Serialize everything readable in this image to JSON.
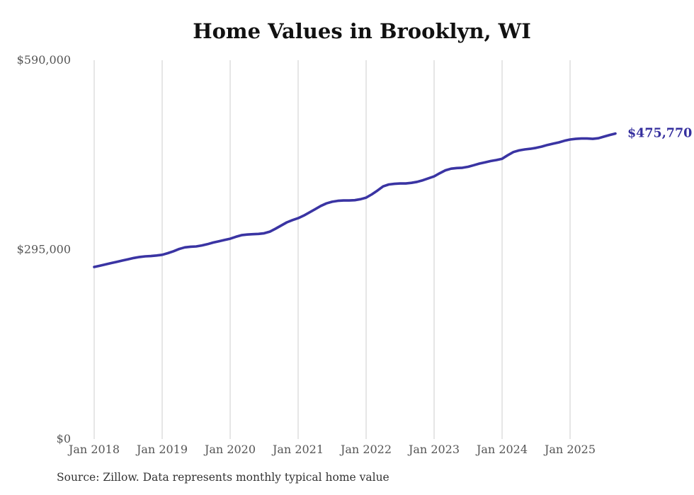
{
  "page": {
    "background": "#ffffff"
  },
  "chart_data": {
    "type": "line",
    "title": "Home Values in Brooklyn, WI",
    "source": "Source: Zillow. Data represents monthly typical home value",
    "series_name": "Typical home value",
    "x_start": "Jan 2018",
    "x_end": "Sep 2025",
    "frequency": "monthly",
    "values": [
      268000,
      270000,
      272000,
      274000,
      276000,
      278000,
      280000,
      282000,
      283500,
      284500,
      285000,
      285800,
      287000,
      289500,
      292500,
      296000,
      298500,
      299500,
      300000,
      301500,
      303500,
      306000,
      308000,
      310000,
      312000,
      315000,
      317500,
      318500,
      319000,
      319500,
      320500,
      323000,
      327500,
      332500,
      337500,
      341000,
      344000,
      348000,
      353000,
      358000,
      363000,
      367000,
      369500,
      371000,
      371500,
      371500,
      372000,
      373500,
      376000,
      381000,
      387000,
      393500,
      396500,
      397500,
      398000,
      398000,
      399000,
      400500,
      403000,
      406000,
      409000,
      414000,
      418500,
      421000,
      422000,
      422500,
      424000,
      426500,
      429000,
      431000,
      433000,
      434500,
      436500,
      442000,
      447000,
      449500,
      451000,
      452000,
      453500,
      455500,
      458000,
      460000,
      462000,
      464500,
      466500,
      467500,
      468000,
      468000,
      467500,
      468500,
      471000,
      473500,
      475770
    ],
    "x_tick_labels": [
      "Jan 2018",
      "Jan 2019",
      "Jan 2020",
      "Jan 2021",
      "Jan 2022",
      "Jan 2023",
      "Jan 2024",
      "Jan 2025"
    ],
    "y_ticks": [
      {
        "value": 0,
        "label": "$0"
      },
      {
        "value": 295000,
        "label": "$295,000"
      },
      {
        "value": 590000,
        "label": "$590,000"
      }
    ],
    "ylim": [
      0,
      590000
    ],
    "grid": "vertical-only",
    "legend": "none",
    "end_label": "$475,770",
    "latest_value": 475770,
    "colors": {
      "line": "#3a34a3",
      "end_label": "#352f9e",
      "gridline": "#cccccc",
      "axis_text": "#555555",
      "title": "#111111",
      "source_text": "#333333"
    }
  }
}
